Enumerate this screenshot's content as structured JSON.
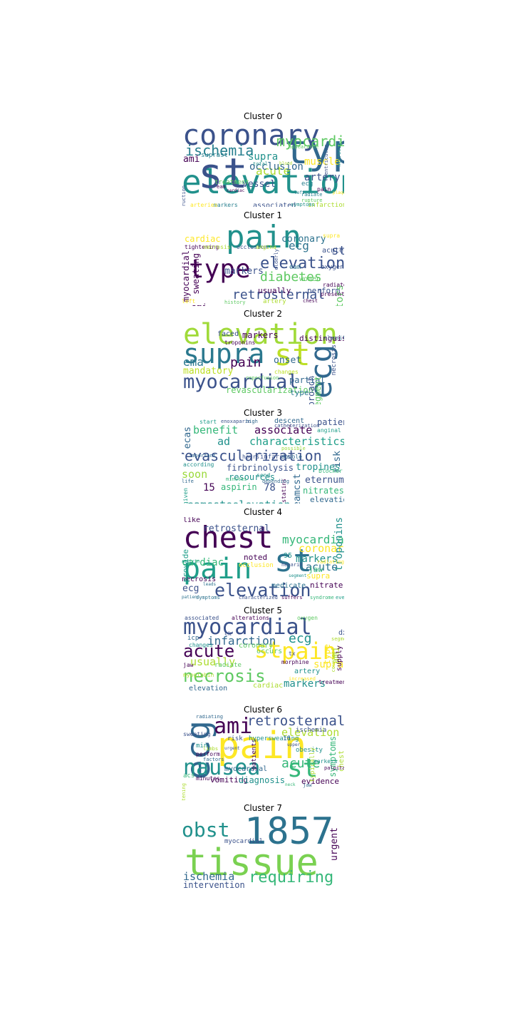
{
  "figure": {
    "clusters": [
      {
        "title": "Cluster 0",
        "words": [
          "elevation",
          "st",
          "type",
          "coronary",
          "ischemia",
          "myocardial",
          "acute",
          "occlusion",
          "artery",
          "muscle",
          "supra",
          "vessel",
          "ami",
          "suprast",
          "ecg",
          "eam",
          "associated",
          "markers",
          "arteries",
          "treatment",
          "infarction",
          "symptoms",
          "radiate",
          "rupture",
          "pain",
          "cardiac",
          "total",
          "blood",
          "necrosis",
          "ventricular",
          "appearance",
          "obstruction",
          "plaque",
          "left"
        ],
        "colors": [
          "#440154",
          "#277f8e",
          "#3b528b",
          "#21918c",
          "#5ec962",
          "#fde725",
          "#addc30",
          "#31688e"
        ]
      },
      {
        "title": "Cluster 1",
        "words": [
          "pain",
          "type",
          "elevation",
          "diabetes",
          "retrosternal",
          "ecg",
          "st",
          "myocardial",
          "sweating",
          "cardiac",
          "coronary",
          "markers",
          "usually",
          "perform",
          "ami",
          "factors",
          "acute",
          "eam",
          "oxygen",
          "presentation",
          "artery",
          "radiate",
          "supra",
          "tightening",
          "necrosis",
          "occlusion",
          "angina",
          "women",
          "left",
          "chest",
          "elderly",
          "history"
        ],
        "colors": [
          "#21918c",
          "#440154",
          "#3b528b",
          "#5ec962",
          "#fde725",
          "#2c728e",
          "#addc30"
        ]
      },
      {
        "title": "Cluster 2",
        "words": [
          "elevation",
          "supra",
          "st",
          "ecg",
          "myocardial",
          "pain",
          "ema",
          "mandatory",
          "onset",
          "markers",
          "faced",
          "distinguish",
          "revascularization",
          "type",
          "changes",
          "partial",
          "segment",
          "approach",
          "necrosis",
          "troponins",
          "classify",
          "reperfusion"
        ],
        "colors": [
          "#a0da39",
          "#2a788e",
          "#bddf26",
          "#31688e",
          "#3b528b",
          "#440154",
          "#5ec962"
        ]
      },
      {
        "title": "Cluster 3",
        "words": [
          "revascularization",
          "characteristics",
          "associate",
          "benefit",
          "ad",
          "soon",
          "firbrinolysis",
          "resources",
          "tropines",
          "eternum",
          "nitrates",
          "elevation",
          "eamssteelevation",
          "aspirin",
          "15",
          "78",
          "eamcst",
          "risk",
          "patient",
          "anginal",
          "ecas",
          "infarcts",
          "double",
          "descent",
          "hours",
          "start",
          "enoxaparin",
          "high",
          "catheterization",
          "according",
          "important",
          "minutes",
          "statins",
          "blocker",
          "life",
          "given",
          "send",
          "depending",
          "possible"
        ],
        "colors": [
          "#3b528b",
          "#1f9e89",
          "#440154",
          "#35b779",
          "#21918c",
          "#9bd93c",
          "#31688e"
        ]
      },
      {
        "title": "Cluster 4",
        "words": [
          "chest",
          "pain",
          "st",
          "elevation",
          "myocardial",
          "coronary",
          "markers",
          "cardiac",
          "retrosternal",
          "troponins",
          "acute",
          "supra",
          "nitrate",
          "medicate",
          "necrosis",
          "ecg",
          "noted",
          "occlusion",
          "like",
          "provide",
          "jaw",
          "95",
          "heparin",
          "aspirin",
          "characterized",
          "suffers",
          "syndrome",
          "event",
          "symptoms",
          "patient",
          "radiating",
          "segment",
          "leads"
        ],
        "colors": [
          "#440154",
          "#1f9e89",
          "#2c728e",
          "#3b528b",
          "#35b779",
          "#fde725",
          "#21918c"
        ]
      },
      {
        "title": "Cluster 5",
        "words": [
          "myocardial",
          "st",
          "pain",
          "acute",
          "necrosis",
          "ecg",
          "infarction",
          "usually",
          "markers",
          "supra",
          "ami",
          "type",
          "supply",
          "coronary",
          "artery",
          "cardiac",
          "elevation",
          "radiate",
          "changes",
          "icp",
          "jaw",
          "myoglobin",
          "morphine",
          "tx",
          "dx",
          "associated",
          "alterations",
          "oxygen",
          "treatment",
          "increased",
          "segment",
          "courses",
          "occurs",
          "ck"
        ],
        "colors": [
          "#3b528b",
          "#fde725",
          "#440154",
          "#5ec962",
          "#21918c",
          "#31688e",
          "#addc30"
        ]
      },
      {
        "title": "Cluster 6",
        "words": [
          "pain",
          "ecg",
          "st",
          "nausea",
          "ami",
          "retrosternal",
          "elevation",
          "acute",
          "vomiting",
          "diagnosis",
          "evidence",
          "myocardial",
          "symptoms",
          "obesity",
          "typically",
          "markers",
          "chest",
          "ischemia",
          "patients",
          "risk",
          "hypersweating",
          "min",
          "limbs",
          "10",
          "upper",
          "factors",
          "perform",
          "acs",
          "minutes",
          "palpitations",
          "urgent",
          "neck",
          "jaw",
          "sweating",
          "radiating",
          "tightening"
        ],
        "colors": [
          "#fde725",
          "#31688e",
          "#35b779",
          "#21918c",
          "#440154",
          "#3b528b",
          "#addc30"
        ]
      },
      {
        "title": "Cluster 7",
        "words": [
          "tissue",
          "1857",
          "obst",
          "requiring",
          "ischemia",
          "intervention",
          "urgent",
          "myocardial"
        ],
        "colors": [
          "#7ad151",
          "#2c728e",
          "#21918c",
          "#35b779",
          "#31688e",
          "#3b528b",
          "#440154"
        ]
      }
    ]
  }
}
